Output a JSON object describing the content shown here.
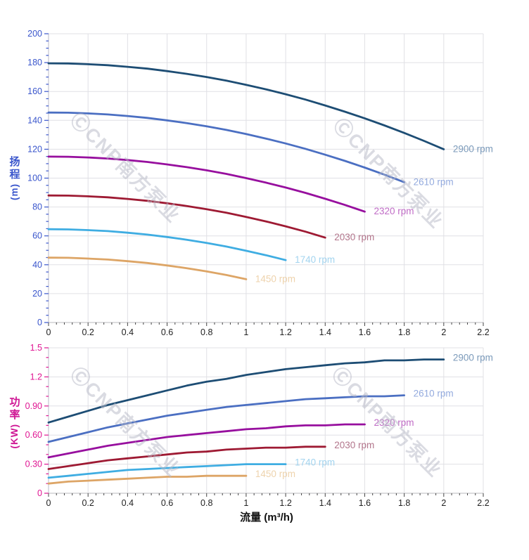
{
  "page": {
    "background": "#ffffff"
  },
  "watermark": {
    "text": "ⒸCNP南方泵业",
    "color": "#b7b9c7"
  },
  "axis_titles": {
    "head": {
      "chars": [
        "扬",
        "程"
      ],
      "unit": "(m)",
      "color": "#3a56cc"
    },
    "power": {
      "chars": [
        "功",
        "率"
      ],
      "unit": "(KW)",
      "color": "#cf1694"
    },
    "flow": {
      "label": "流量 (m³/h)",
      "color": "#111111"
    }
  },
  "chart_data": [
    {
      "type": "line",
      "panel": "head",
      "title": "",
      "xlabel": "流量 (m³/h)",
      "ylabel": "扬程 (m)",
      "xlim": [
        0,
        2.2
      ],
      "ylim": [
        0,
        200
      ],
      "x_major_step": 0.2,
      "x_minor_step": 0.04,
      "y_major_step": 20,
      "y_minor_step": 5,
      "grid": true,
      "legend_position": "curve-end-labels",
      "tick_label_color": "#3a56cc",
      "x_tick_label_color": "#222222",
      "x_tick_labels": [
        "0",
        "0.2",
        "0.4",
        "0.6",
        "0.8",
        "1",
        "1.2",
        "1.4",
        "1.6",
        "1.8",
        "2",
        "2.2"
      ],
      "y_tick_labels": [
        "0",
        "20",
        "40",
        "60",
        "80",
        "100",
        "120",
        "140",
        "160",
        "180",
        "200"
      ],
      "series": [
        {
          "name": "2900 rpm",
          "color": "#1d4d74",
          "label_color": "#7b9aba",
          "x": [
            0,
            0.1,
            0.2,
            0.3,
            0.4,
            0.5,
            0.6,
            0.7,
            0.8,
            0.9,
            1.0,
            1.1,
            1.2,
            1.3,
            1.4,
            1.5,
            1.6,
            1.7,
            1.8,
            1.9,
            2.0
          ],
          "y": [
            179.5,
            179.4,
            178.9,
            178.2,
            177.1,
            175.8,
            174.1,
            172.2,
            170.0,
            167.5,
            164.6,
            161.5,
            158.1,
            154.4,
            150.3,
            146.0,
            141.4,
            136.5,
            131.3,
            125.8,
            120.0
          ]
        },
        {
          "name": "2610 rpm",
          "color": "#4b6fc2",
          "label_color": "#93aade",
          "x": [
            0,
            0.1,
            0.2,
            0.3,
            0.4,
            0.5,
            0.6,
            0.7,
            0.8,
            0.9,
            1.0,
            1.1,
            1.2,
            1.3,
            1.4,
            1.5,
            1.6,
            1.7,
            1.8
          ],
          "y": [
            145.4,
            145.3,
            144.8,
            144.1,
            143.0,
            141.7,
            140.0,
            138.1,
            135.9,
            133.4,
            130.5,
            127.4,
            124.0,
            120.3,
            116.2,
            111.9,
            107.3,
            102.4,
            97.2
          ]
        },
        {
          "name": "2320 rpm",
          "color": "#970f9e",
          "label_color": "#c06cc6",
          "x": [
            0,
            0.1,
            0.2,
            0.3,
            0.4,
            0.5,
            0.6,
            0.7,
            0.8,
            0.9,
            1.0,
            1.1,
            1.2,
            1.3,
            1.4,
            1.5,
            1.6
          ],
          "y": [
            114.9,
            114.8,
            114.3,
            113.6,
            112.5,
            111.2,
            109.5,
            107.6,
            105.4,
            102.9,
            100.0,
            96.9,
            93.5,
            89.8,
            85.7,
            81.4,
            76.8
          ]
        },
        {
          "name": "2030 rpm",
          "color": "#9e1a33",
          "label_color": "#b2758b",
          "x": [
            0,
            0.1,
            0.2,
            0.3,
            0.4,
            0.5,
            0.6,
            0.7,
            0.8,
            0.9,
            1.0,
            1.1,
            1.2,
            1.3,
            1.4
          ],
          "y": [
            88.0,
            87.9,
            87.4,
            86.7,
            85.6,
            84.3,
            82.6,
            80.7,
            78.5,
            76.0,
            73.1,
            70.0,
            66.6,
            62.9,
            58.8
          ]
        },
        {
          "name": "1740 rpm",
          "color": "#3fade2",
          "label_color": "#a3d4ef",
          "x": [
            0,
            0.1,
            0.2,
            0.3,
            0.4,
            0.5,
            0.6,
            0.7,
            0.8,
            0.9,
            1.0,
            1.1,
            1.2
          ],
          "y": [
            64.6,
            64.5,
            64.0,
            63.3,
            62.2,
            60.9,
            59.2,
            57.3,
            55.1,
            52.6,
            49.7,
            46.6,
            43.2
          ]
        },
        {
          "name": "1450 rpm",
          "color": "#dda566",
          "label_color": "#eed3ad",
          "x": [
            0,
            0.1,
            0.2,
            0.3,
            0.4,
            0.5,
            0.6,
            0.7,
            0.8,
            0.9,
            1.0
          ],
          "y": [
            44.9,
            44.8,
            44.3,
            43.6,
            42.5,
            41.2,
            39.5,
            37.6,
            35.4,
            32.9,
            30.0
          ]
        }
      ]
    },
    {
      "type": "line",
      "panel": "power",
      "title": "",
      "xlabel": "流量 (m³/h)",
      "ylabel": "功率 (KW)",
      "xlim": [
        0,
        2.2
      ],
      "ylim": [
        0,
        1.5
      ],
      "x_major_step": 0.2,
      "x_minor_step": 0.04,
      "y_major_step": 0.3,
      "y_minor_step": 0.1,
      "grid": true,
      "legend_position": "curve-end-labels",
      "tick_label_color": "#e01693",
      "x_tick_label_color": "#222222",
      "x_tick_labels": [
        "0",
        "0.2",
        "0.4",
        "0.6",
        "0.8",
        "1",
        "1.2",
        "1.4",
        "1.6",
        "1.8",
        "2",
        "2.2"
      ],
      "y_tick_labels": [
        "0",
        "0.30",
        "0.60",
        "0.90",
        "1.2",
        "1.5"
      ],
      "series": [
        {
          "name": "2900 rpm",
          "color": "#1d4d74",
          "label_color": "#7b9aba",
          "x": [
            0,
            0.1,
            0.2,
            0.3,
            0.4,
            0.5,
            0.6,
            0.7,
            0.8,
            0.9,
            1.0,
            1.1,
            1.2,
            1.3,
            1.4,
            1.5,
            1.6,
            1.7,
            1.8,
            1.9,
            2.0
          ],
          "y": [
            0.73,
            0.79,
            0.85,
            0.91,
            0.96,
            1.01,
            1.06,
            1.11,
            1.15,
            1.18,
            1.22,
            1.25,
            1.28,
            1.3,
            1.32,
            1.34,
            1.35,
            1.37,
            1.37,
            1.38,
            1.38
          ]
        },
        {
          "name": "2610 rpm",
          "color": "#4b6fc2",
          "label_color": "#93aade",
          "x": [
            0,
            0.1,
            0.2,
            0.3,
            0.4,
            0.5,
            0.6,
            0.7,
            0.8,
            0.9,
            1.0,
            1.1,
            1.2,
            1.3,
            1.4,
            1.5,
            1.6,
            1.7,
            1.8
          ],
          "y": [
            0.53,
            0.58,
            0.63,
            0.68,
            0.72,
            0.76,
            0.8,
            0.83,
            0.86,
            0.89,
            0.91,
            0.93,
            0.95,
            0.97,
            0.98,
            0.99,
            1.0,
            1.0,
            1.01
          ]
        },
        {
          "name": "2320 rpm",
          "color": "#970f9e",
          "label_color": "#c06cc6",
          "x": [
            0,
            0.1,
            0.2,
            0.3,
            0.4,
            0.5,
            0.6,
            0.7,
            0.8,
            0.9,
            1.0,
            1.1,
            1.2,
            1.3,
            1.4,
            1.5,
            1.6
          ],
          "y": [
            0.37,
            0.41,
            0.45,
            0.49,
            0.52,
            0.55,
            0.58,
            0.6,
            0.62,
            0.64,
            0.66,
            0.67,
            0.69,
            0.7,
            0.7,
            0.71,
            0.71
          ]
        },
        {
          "name": "2030 rpm",
          "color": "#9e1a33",
          "label_color": "#b2758b",
          "x": [
            0,
            0.1,
            0.2,
            0.3,
            0.4,
            0.5,
            0.6,
            0.7,
            0.8,
            0.9,
            1.0,
            1.1,
            1.2,
            1.3,
            1.4
          ],
          "y": [
            0.25,
            0.28,
            0.31,
            0.34,
            0.36,
            0.38,
            0.4,
            0.42,
            0.43,
            0.45,
            0.46,
            0.47,
            0.47,
            0.48,
            0.48
          ]
        },
        {
          "name": "1740 rpm",
          "color": "#3fade2",
          "label_color": "#a3d4ef",
          "x": [
            0,
            0.1,
            0.2,
            0.3,
            0.4,
            0.5,
            0.6,
            0.7,
            0.8,
            0.9,
            1.0,
            1.1,
            1.2
          ],
          "y": [
            0.16,
            0.18,
            0.2,
            0.22,
            0.24,
            0.25,
            0.26,
            0.27,
            0.28,
            0.29,
            0.3,
            0.3,
            0.3
          ]
        },
        {
          "name": "1450 rpm",
          "color": "#dda566",
          "label_color": "#eed3ad",
          "x": [
            0,
            0.1,
            0.2,
            0.3,
            0.4,
            0.5,
            0.6,
            0.7,
            0.8,
            0.9,
            1.0
          ],
          "y": [
            0.1,
            0.12,
            0.13,
            0.14,
            0.15,
            0.16,
            0.17,
            0.17,
            0.18,
            0.18,
            0.18
          ]
        }
      ]
    }
  ]
}
